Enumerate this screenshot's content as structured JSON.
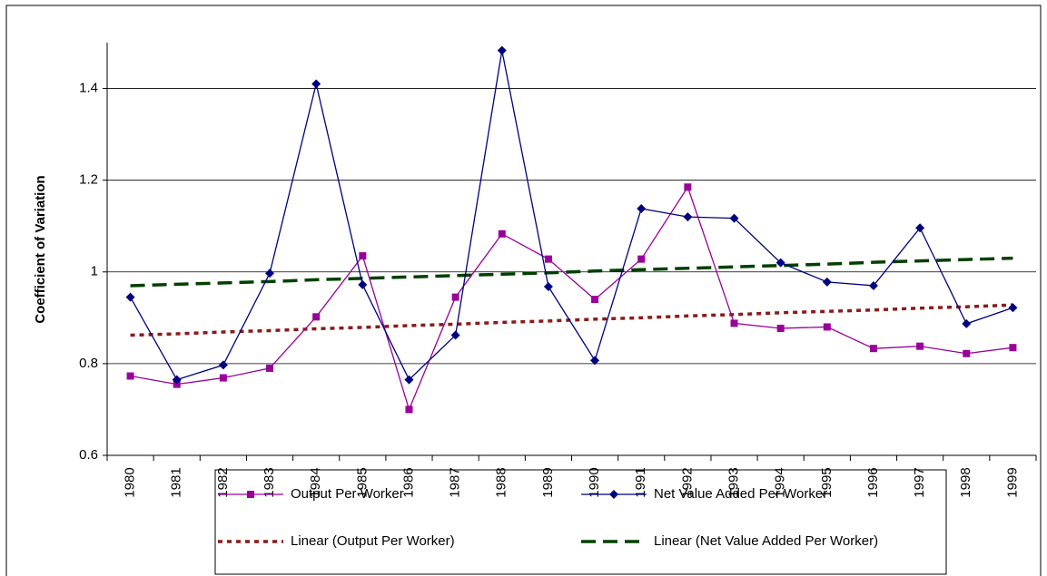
{
  "chart_data": {
    "type": "line",
    "y_label": "Coefficient of Variation",
    "categories": [
      "1980",
      "1981",
      "1982",
      "1983",
      "1984",
      "1985",
      "1986",
      "1987",
      "1988",
      "1989",
      "1990",
      "1991",
      "1992",
      "1993",
      "1994",
      "1995",
      "1996",
      "1997",
      "1998",
      "1999"
    ],
    "series": [
      {
        "name": "Output Per Worker",
        "color": "#990099",
        "marker": "square",
        "style": "solid",
        "values": [
          0.773,
          0.755,
          0.769,
          0.79,
          0.902,
          1.035,
          0.7,
          0.945,
          1.083,
          1.028,
          0.94,
          1.028,
          1.185,
          0.888,
          0.877,
          0.88,
          0.833,
          0.838,
          0.822,
          0.835
        ]
      },
      {
        "name": "Net Value Added Per Worker",
        "color": "#000080",
        "marker": "diamond",
        "style": "solid",
        "values": [
          0.945,
          0.765,
          0.797,
          0.997,
          1.41,
          0.972,
          0.765,
          0.862,
          1.483,
          0.968,
          0.807,
          1.138,
          1.12,
          1.117,
          1.02,
          0.978,
          0.97,
          1.096,
          0.887,
          0.922
        ]
      },
      {
        "name": "Linear (Output Per Worker)",
        "color": "#8b1a1a",
        "style": "dotted",
        "values": [
          0.862,
          0.865,
          0.869,
          0.872,
          0.876,
          0.879,
          0.883,
          0.886,
          0.89,
          0.893,
          0.897,
          0.9,
          0.904,
          0.907,
          0.911,
          0.914,
          0.917,
          0.921,
          0.924,
          0.928
        ]
      },
      {
        "name": "Linear (Net Value Added Per Worker)",
        "color": "#004000",
        "style": "dashed",
        "values": [
          0.97,
          0.973,
          0.976,
          0.979,
          0.983,
          0.986,
          0.989,
          0.992,
          0.995,
          0.998,
          1.002,
          1.005,
          1.008,
          1.011,
          1.014,
          1.017,
          1.021,
          1.024,
          1.027,
          1.03
        ]
      }
    ],
    "ylim": [
      0.6,
      1.5
    ],
    "yticks": [
      0.6,
      0.8,
      1,
      1.2,
      1.4
    ],
    "grid": true
  }
}
